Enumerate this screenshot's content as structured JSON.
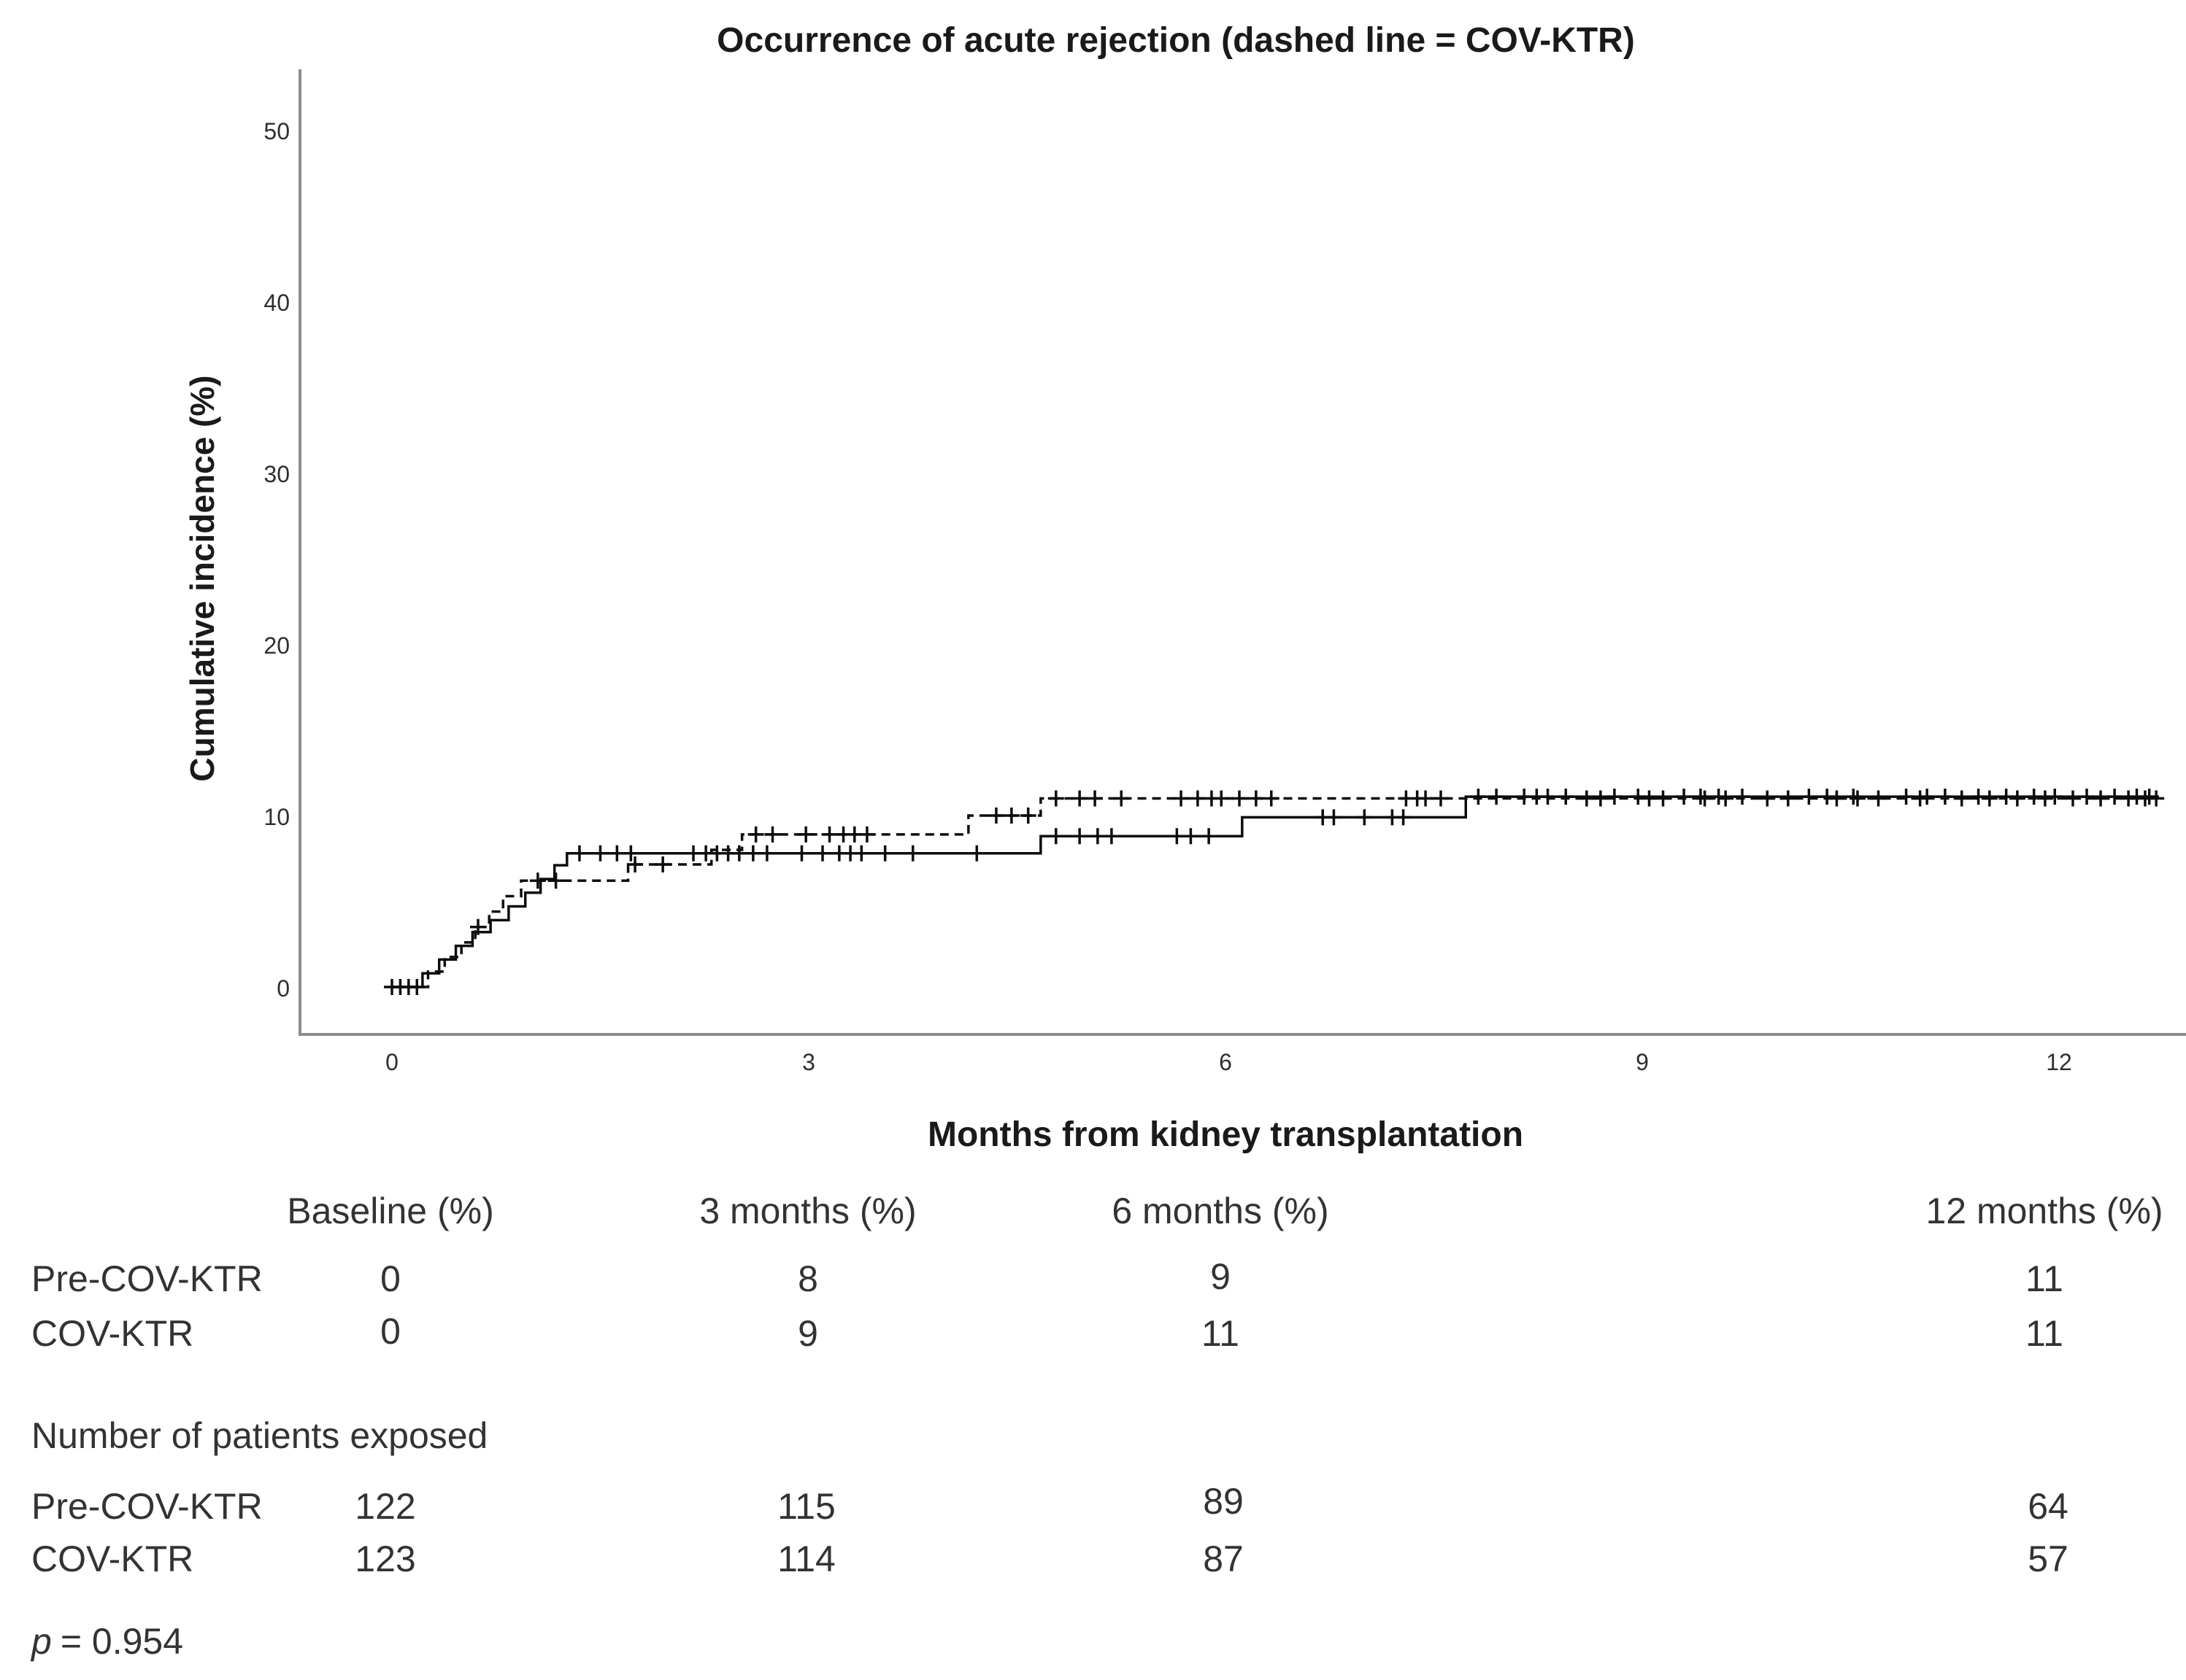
{
  "chart_data": {
    "type": "line",
    "subtype": "kaplan-meier-cumulative-incidence-step",
    "title": "Occurrence of acute rejection (dashed line = COV-KTR)",
    "xlabel": "Months from kidney transplantation",
    "ylabel": "Cumulative incidence (%)",
    "xlim": [
      0,
      12.91
    ],
    "ylim": [
      0,
      53.5
    ],
    "grid": false,
    "legend_position": "none (encoded in title: dashed line = COV-KTR)",
    "x_ticks": [
      0,
      3,
      6,
      9,
      12
    ],
    "y_ticks": [
      0,
      10,
      20,
      30,
      40,
      50
    ],
    "x_tick_labels": [
      "0",
      "3",
      "6",
      "9",
      "12"
    ],
    "y_tick_labels": [
      "0",
      "10",
      "20",
      "30",
      "40",
      "50"
    ],
    "axis_color": "#8c8c8c",
    "curve_color": "#0d0d0d",
    "series": [
      {
        "name": "Pre-COV-KTR",
        "line_style": "solid",
        "steps": [
          [
            0.22,
            0.8
          ],
          [
            0.34,
            1.6
          ],
          [
            0.46,
            2.4
          ],
          [
            0.58,
            3.2
          ],
          [
            0.71,
            3.9
          ],
          [
            0.84,
            4.7
          ],
          [
            0.96,
            5.5
          ],
          [
            1.07,
            6.3
          ],
          [
            1.17,
            7.1
          ],
          [
            1.26,
            7.8
          ],
          [
            4.67,
            8.8
          ],
          [
            6.12,
            9.9
          ],
          [
            7.73,
            11.1
          ]
        ],
        "end_month": 12.72,
        "censor_months": [
          0.0,
          0.12,
          1.35,
          1.5,
          1.62,
          1.72,
          2.17,
          2.26,
          2.34,
          2.42,
          2.5,
          2.6,
          2.7,
          2.95,
          3.1,
          3.22,
          3.3,
          3.38,
          3.55,
          3.75,
          4.21,
          4.78,
          4.95,
          5.08,
          5.18,
          5.65,
          5.75,
          5.88,
          6.7,
          6.78,
          7.0,
          7.2,
          7.28,
          7.82,
          7.95,
          8.15,
          8.24,
          8.32,
          8.45,
          8.8,
          8.97,
          9.3,
          9.42,
          9.55,
          9.72,
          10.2,
          10.33,
          10.52,
          10.9,
          11.05,
          11.18,
          11.42,
          11.62,
          11.82,
          11.97,
          12.2,
          12.4,
          12.56,
          12.65
        ]
      },
      {
        "name": "COV-KTR",
        "line_style": "dashed",
        "steps": [
          [
            0.26,
            0.9
          ],
          [
            0.38,
            1.75
          ],
          [
            0.5,
            2.6
          ],
          [
            0.6,
            3.5
          ],
          [
            0.7,
            4.4
          ],
          [
            0.8,
            5.3
          ],
          [
            0.93,
            6.2
          ],
          [
            1.7,
            7.15
          ],
          [
            2.3,
            8.0
          ],
          [
            2.52,
            8.9
          ],
          [
            4.15,
            10.0
          ],
          [
            4.67,
            11.0
          ]
        ],
        "end_month": 12.72,
        "censor_months": [
          0.06,
          0.18,
          0.62,
          1.05,
          1.18,
          1.75,
          1.95,
          2.62,
          2.74,
          2.98,
          3.15,
          3.25,
          3.33,
          3.42,
          4.35,
          4.46,
          4.58,
          4.78,
          4.95,
          5.06,
          5.25,
          5.68,
          5.8,
          5.9,
          5.97,
          6.1,
          6.22,
          6.33,
          7.3,
          7.38,
          7.44,
          7.55,
          8.6,
          8.7,
          9.05,
          9.15,
          9.45,
          9.6,
          9.9,
          10.05,
          10.4,
          10.55,
          10.7,
          11.0,
          11.3,
          11.5,
          11.7,
          11.9,
          12.1,
          12.3,
          12.5,
          12.62,
          12.7
        ]
      }
    ]
  },
  "table": {
    "col_headers": [
      "Baseline (%)",
      "3 months (%)",
      "6 months (%)",
      "12 months (%)"
    ],
    "incidence_rows": [
      {
        "label": "Pre-COV-KTR",
        "values": [
          "0",
          "8",
          "9",
          "11"
        ]
      },
      {
        "label": "COV-KTR",
        "values": [
          "0",
          "9",
          "11",
          "11"
        ]
      }
    ],
    "section_title": "Number of patients exposed",
    "exposed_rows": [
      {
        "label": "Pre-COV-KTR",
        "values": [
          "122",
          "115",
          "89",
          "64"
        ]
      },
      {
        "label": "COV-KTR",
        "values": [
          "123",
          "114",
          "87",
          "57"
        ]
      }
    ]
  },
  "stats": {
    "p_label": "p",
    "p_value": "= 0.954"
  }
}
